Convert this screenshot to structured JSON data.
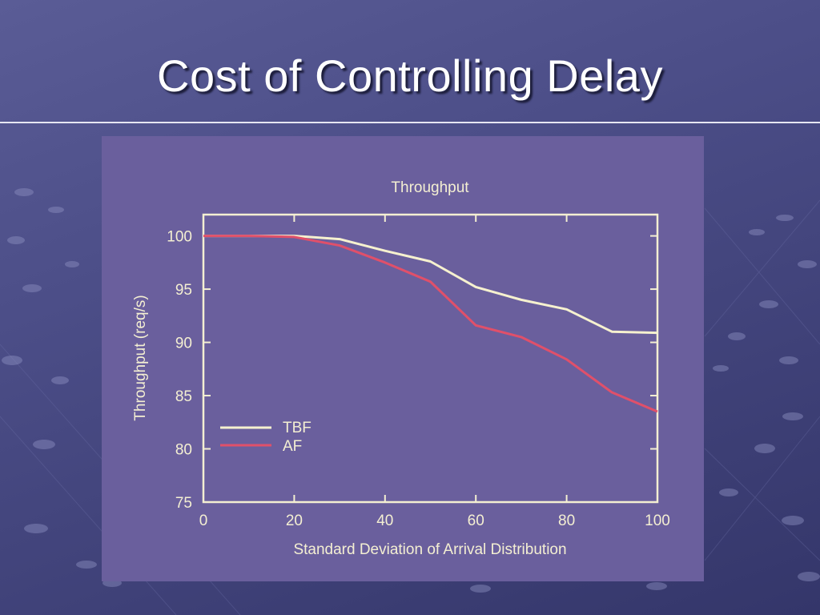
{
  "slide": {
    "title": "Cost of Controlling Delay"
  },
  "colors": {
    "background": "#4c4e88",
    "panel": "#6a5f9d",
    "axis": "#f4efd2",
    "tbf": "#f6f1cf",
    "af": "#e0506a"
  },
  "chart_data": {
    "type": "line",
    "title": "Throughput",
    "xlabel": "Standard Deviation of Arrival Distribution",
    "ylabel": "Throughput (req/s)",
    "xlim": [
      0,
      100
    ],
    "ylim": [
      75,
      102
    ],
    "xticks": [
      0,
      20,
      40,
      60,
      80,
      100
    ],
    "yticks": [
      75,
      80,
      85,
      90,
      95,
      100
    ],
    "x": [
      0,
      10,
      20,
      30,
      40,
      50,
      60,
      70,
      80,
      90,
      100
    ],
    "series": [
      {
        "name": "TBF",
        "color": "#f6f1cf",
        "values": [
          100.0,
          100.0,
          100.0,
          99.7,
          98.6,
          97.6,
          95.2,
          94.0,
          93.1,
          91.0,
          90.9
        ]
      },
      {
        "name": "AF",
        "color": "#e0506a",
        "values": [
          100.0,
          100.0,
          99.9,
          99.1,
          97.5,
          95.7,
          91.6,
          90.5,
          88.4,
          85.3,
          83.5
        ]
      }
    ],
    "legend": "inside lower-left",
    "grid": false
  }
}
